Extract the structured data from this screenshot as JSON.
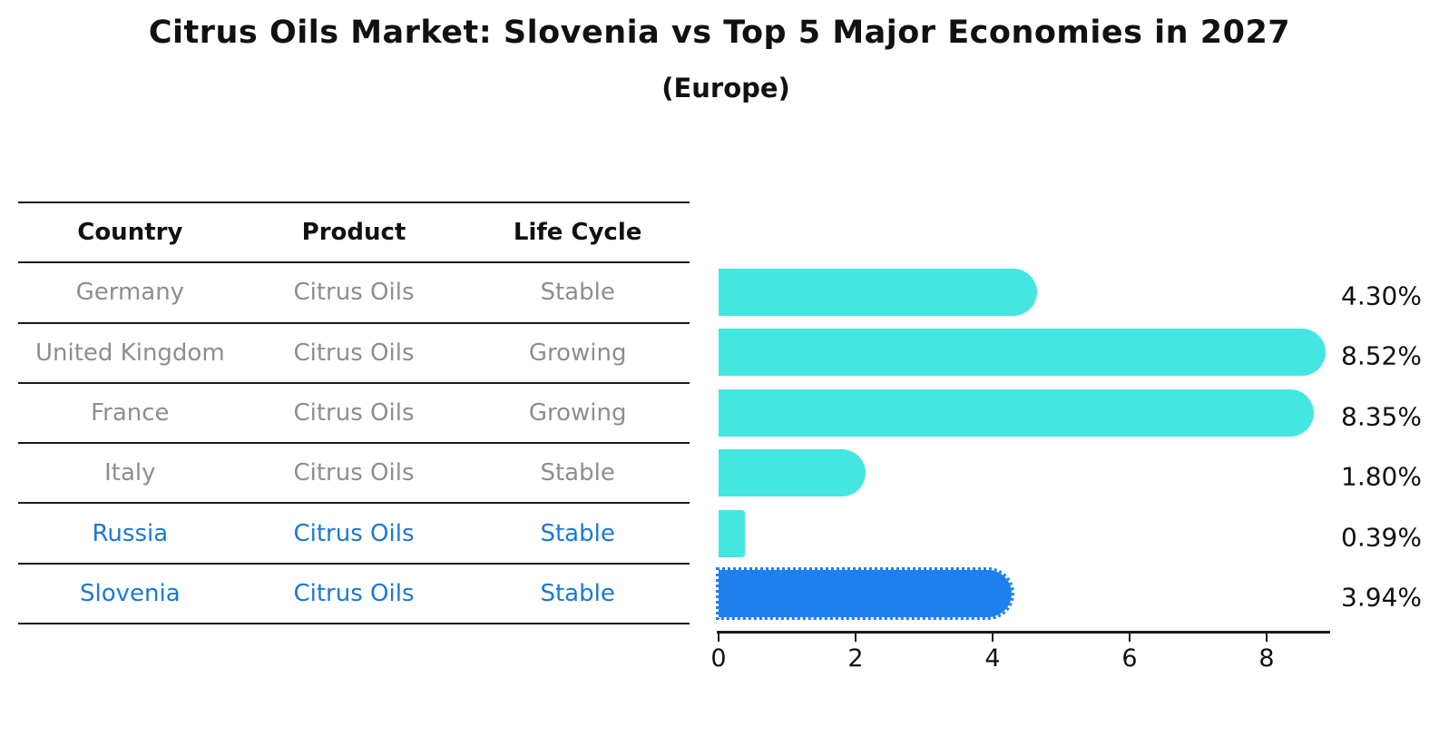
{
  "title": "Citrus Oils Market: Slovenia vs Top 5 Major Economies in 2027",
  "subtitle": "(Europe)",
  "table": {
    "headers": [
      "Country",
      "Product",
      "Life Cycle"
    ],
    "rows": [
      {
        "country": "Germany",
        "product": "Citrus Oils",
        "life_cycle": "Stable",
        "highlight": false
      },
      {
        "country": "United Kingdom",
        "product": "Citrus Oils",
        "life_cycle": "Growing",
        "highlight": false
      },
      {
        "country": "France",
        "product": "Citrus Oils",
        "life_cycle": "Growing",
        "highlight": false
      },
      {
        "country": "Italy",
        "product": "Citrus Oils",
        "life_cycle": "Stable",
        "highlight": false
      },
      {
        "country": "Russia",
        "product": "Citrus Oils",
        "life_cycle": "Stable",
        "highlight": true
      },
      {
        "country": "Slovenia",
        "product": "Citrus Oils",
        "life_cycle": "Stable",
        "highlight": true
      }
    ]
  },
  "chart_data": {
    "type": "bar",
    "orientation": "horizontal",
    "title": "Citrus Oils Market: Slovenia vs Top 5 Major Economies in 2027 (Europe)",
    "categories": [
      "Germany",
      "United Kingdom",
      "France",
      "Italy",
      "Russia",
      "Slovenia"
    ],
    "values": [
      4.3,
      8.52,
      8.35,
      1.8,
      0.39,
      3.94
    ],
    "value_labels": [
      "4.30%",
      "8.52%",
      "8.35%",
      "1.80%",
      "0.39%",
      "3.94%"
    ],
    "unit": "%",
    "xticks": [
      0,
      2,
      4,
      6,
      8
    ],
    "xlim": [
      0,
      8.9
    ],
    "grid": false,
    "legend": false,
    "highlight_index": 5
  },
  "colors": {
    "bar": "#45E6E1",
    "highlight_bar": "#1C81EF",
    "highlight_text": "#1B78D6",
    "text": "#111111",
    "muted_text": "#8e8e8e",
    "axis": "#1a1a1a"
  }
}
